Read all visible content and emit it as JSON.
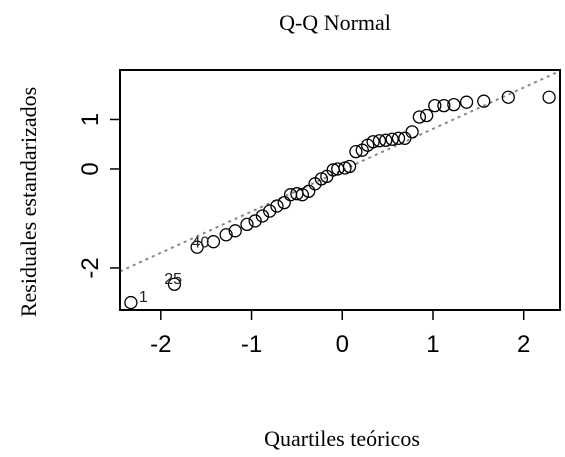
{
  "chart_data": {
    "type": "scatter",
    "title": "Q-Q Normal",
    "xlabel": "Quartiles teóricos",
    "ylabel": "Residuales estandarizados",
    "xlim": [
      -2.45,
      2.4
    ],
    "ylim": [
      -2.85,
      2.0
    ],
    "xticks": [
      -2,
      -1,
      0,
      1,
      2
    ],
    "yticks": [
      -2,
      0,
      1
    ],
    "xtick_labels": [
      "-2",
      "-1",
      "0",
      "1",
      "2"
    ],
    "ytick_labels": [
      "-2",
      "0",
      "1"
    ],
    "grid": false,
    "reference_line": {
      "x1": -2.45,
      "y1": -2.07,
      "x2": 2.4,
      "y2": 1.98
    },
    "point_labels": [
      {
        "text": "1",
        "x": -2.33,
        "y": -2.65
      },
      {
        "text": "25",
        "x": -2.05,
        "y": -2.28
      },
      {
        "text": "40",
        "x": -1.75,
        "y": -1.55
      }
    ],
    "points": [
      {
        "x": -2.33,
        "y": -2.7
      },
      {
        "x": -1.85,
        "y": -2.33
      },
      {
        "x": -1.6,
        "y": -1.58
      },
      {
        "x": -1.42,
        "y": -1.47
      },
      {
        "x": -1.28,
        "y": -1.33
      },
      {
        "x": -1.18,
        "y": -1.25
      },
      {
        "x": -1.05,
        "y": -1.12
      },
      {
        "x": -0.96,
        "y": -1.05
      },
      {
        "x": -0.88,
        "y": -0.95
      },
      {
        "x": -0.8,
        "y": -0.85
      },
      {
        "x": -0.72,
        "y": -0.75
      },
      {
        "x": -0.64,
        "y": -0.68
      },
      {
        "x": -0.57,
        "y": -0.52
      },
      {
        "x": -0.5,
        "y": -0.5
      },
      {
        "x": -0.44,
        "y": -0.52
      },
      {
        "x": -0.37,
        "y": -0.45
      },
      {
        "x": -0.3,
        "y": -0.3
      },
      {
        "x": -0.23,
        "y": -0.2
      },
      {
        "x": -0.17,
        "y": -0.15
      },
      {
        "x": -0.1,
        "y": -0.02
      },
      {
        "x": -0.05,
        "y": 0.0
      },
      {
        "x": 0.03,
        "y": 0.02
      },
      {
        "x": 0.08,
        "y": 0.05
      },
      {
        "x": 0.15,
        "y": 0.35
      },
      {
        "x": 0.22,
        "y": 0.38
      },
      {
        "x": 0.28,
        "y": 0.48
      },
      {
        "x": 0.34,
        "y": 0.55
      },
      {
        "x": 0.41,
        "y": 0.57
      },
      {
        "x": 0.48,
        "y": 0.58
      },
      {
        "x": 0.55,
        "y": 0.6
      },
      {
        "x": 0.62,
        "y": 0.62
      },
      {
        "x": 0.69,
        "y": 0.62
      },
      {
        "x": 0.77,
        "y": 0.75
      },
      {
        "x": 0.85,
        "y": 1.05
      },
      {
        "x": 0.93,
        "y": 1.08
      },
      {
        "x": 1.02,
        "y": 1.28
      },
      {
        "x": 1.12,
        "y": 1.28
      },
      {
        "x": 1.23,
        "y": 1.3
      },
      {
        "x": 1.37,
        "y": 1.35
      },
      {
        "x": 1.56,
        "y": 1.37
      },
      {
        "x": 1.83,
        "y": 1.45
      },
      {
        "x": 2.28,
        "y": 1.45
      }
    ]
  }
}
